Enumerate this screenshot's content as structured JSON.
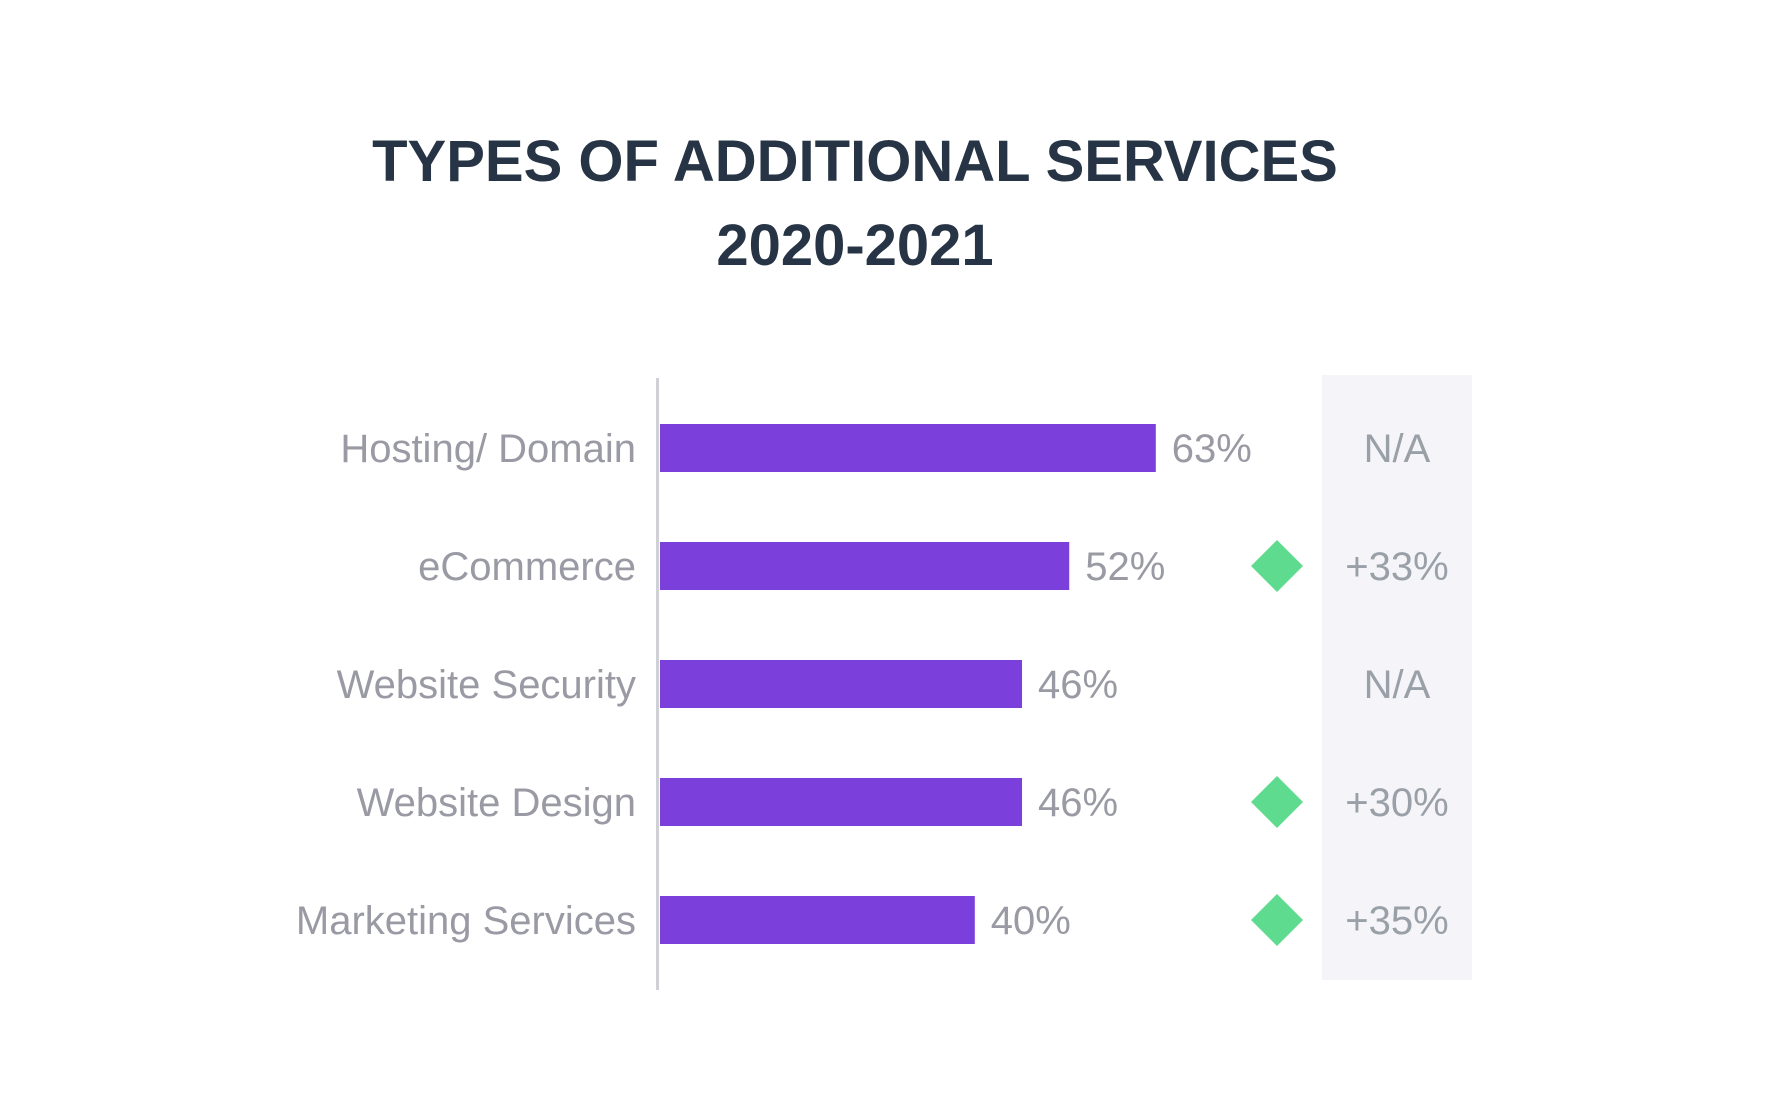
{
  "title": {
    "line1": "TYPES OF ADDITIONAL SERVICES",
    "line2": "2020-2021"
  },
  "colors": {
    "bar": "#7b3fdc",
    "title": "#263445",
    "label": "#999aa3",
    "increase_marker": "#5edb8e",
    "change_column_bg": "#f5f5f9",
    "axis": "#d0d1d6"
  },
  "chart_data": {
    "type": "bar",
    "orientation": "horizontal",
    "title": "TYPES OF ADDITIONAL SERVICES 2020-2021",
    "categories": [
      "Hosting/ Domain",
      "eCommerce",
      "Website Security",
      "Website Design",
      "Marketing Services"
    ],
    "values": [
      63,
      52,
      46,
      46,
      40
    ],
    "value_labels": [
      "63%",
      "52%",
      "46%",
      "46%",
      "40%"
    ],
    "change_labels": [
      "N/A",
      "+33%",
      "N/A",
      "+30%",
      "+35%"
    ],
    "change_markers": [
      "",
      "increase-diamond-icon",
      "",
      "increase-diamond-icon",
      "increase-diamond-icon"
    ],
    "xlim": [
      0,
      100
    ],
    "grid": false,
    "legend": "none"
  }
}
